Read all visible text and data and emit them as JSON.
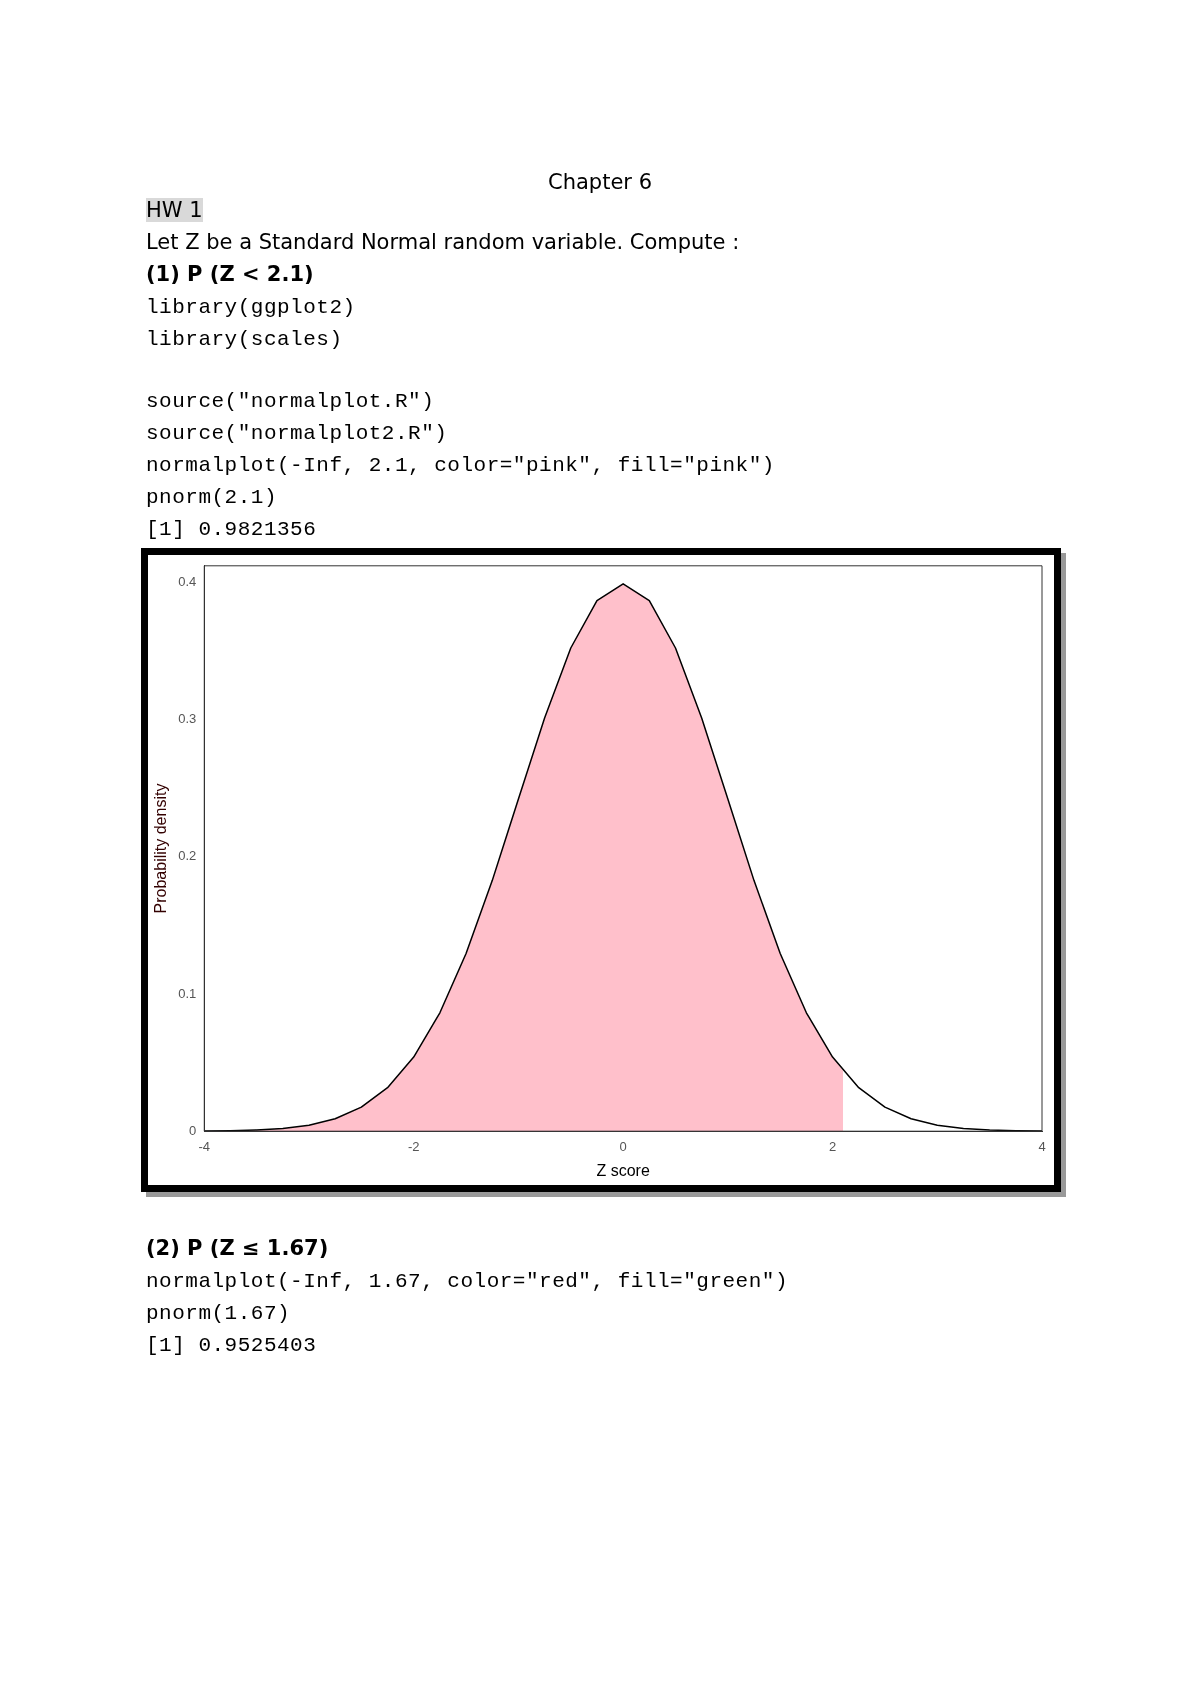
{
  "chart_data": {
    "type": "area",
    "title": "Chapter 6",
    "annotations": [
      "HW 1",
      "Let Z be a Standard Normal random variable. Compute :",
      "(1) P (Z < 2.1)",
      "library(ggplot2)",
      "library(scales)",
      "source(\"normalplot.R\")",
      "source(\"normalplot2.R\")",
      "normalplot(-Inf, 2.1, color=\"pink\", fill=\"pink\")",
      "pnorm(2.1)",
      "[1] 0.9821356",
      "(2) P (Z ≤ 1.67)",
      "normalplot(-Inf, 1.67, color=\"red\", fill=\"green\")",
      "pnorm(1.67)",
      "[1] 0.9525403"
    ],
    "xlabel": "Z score",
    "ylabel": "Probability density",
    "xlim": [
      -4,
      4
    ],
    "xticks": [
      -4,
      -2,
      0,
      2,
      4
    ],
    "ylim": [
      0,
      0.412
    ],
    "yticks": [
      0,
      0.1,
      0.2,
      0.3,
      0.4
    ],
    "grid": false,
    "legend": false,
    "series": [
      {
        "type": "area",
        "color": "#ffc0cb",
        "x": [
          -4,
          -3.75,
          -3.5,
          -3.25,
          -3,
          -2.75,
          -2.5,
          -2.25,
          -2,
          -1.75,
          -1.5,
          -1.25,
          -1,
          -0.75,
          -0.5,
          -0.25,
          0,
          0.25,
          0.5,
          0.75,
          1,
          1.25,
          1.5,
          1.75,
          2,
          2.1
        ],
        "values": [
          0.0001,
          0.0004,
          0.0009,
          0.002,
          0.0044,
          0.0091,
          0.0175,
          0.0317,
          0.054,
          0.0863,
          0.1295,
          0.1826,
          0.242,
          0.3011,
          0.3521,
          0.3867,
          0.3989,
          0.3867,
          0.3521,
          0.3011,
          0.242,
          0.1826,
          0.1295,
          0.0863,
          0.054,
          0.044
        ]
      },
      {
        "type": "line",
        "color": "#000000",
        "x": [
          -4,
          -3.75,
          -3.5,
          -3.25,
          -3,
          -2.75,
          -2.5,
          -2.25,
          -2,
          -1.75,
          -1.5,
          -1.25,
          -1,
          -0.75,
          -0.5,
          -0.25,
          0,
          0.25,
          0.5,
          0.75,
          1,
          1.25,
          1.5,
          1.75,
          2,
          2.25,
          2.5,
          2.75,
          3,
          3.25,
          3.5,
          3.75,
          4
        ],
        "values": [
          0.0001,
          0.0004,
          0.0009,
          0.002,
          0.0044,
          0.0091,
          0.0175,
          0.0317,
          0.054,
          0.0863,
          0.1295,
          0.1826,
          0.242,
          0.3011,
          0.3521,
          0.3867,
          0.3989,
          0.3867,
          0.3521,
          0.3011,
          0.242,
          0.1826,
          0.1295,
          0.0863,
          0.054,
          0.0317,
          0.0175,
          0.0091,
          0.0044,
          0.002,
          0.0009,
          0.0004,
          0.0001
        ]
      }
    ]
  }
}
